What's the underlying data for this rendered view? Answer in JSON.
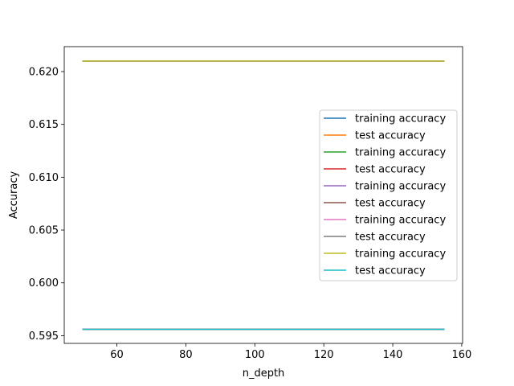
{
  "chart_data": {
    "type": "line",
    "title": "",
    "xlabel": "n_depth",
    "ylabel": "Accuracy",
    "xlim": [
      44.75,
      160.25
    ],
    "ylim": [
      0.59427,
      0.62236
    ],
    "xticks": [
      60,
      80,
      100,
      120,
      140,
      160
    ],
    "yticks": [
      0.595,
      0.6,
      0.605,
      0.61,
      0.615,
      0.62
    ],
    "ytick_labels": [
      "0.595",
      "0.600",
      "0.605",
      "0.610",
      "0.615",
      "0.620"
    ],
    "legend_position": "center-right",
    "grid": false,
    "series": [
      {
        "name": "training accuracy",
        "color": "#1f77b4",
        "x": [
          50,
          155
        ],
        "y": [
          0.621,
          0.621
        ]
      },
      {
        "name": "test accuracy",
        "color": "#ff7f0e",
        "x": [
          50,
          155
        ],
        "y": [
          0.5956,
          0.5956
        ]
      },
      {
        "name": "training accuracy",
        "color": "#2ca02c",
        "x": [
          50,
          155
        ],
        "y": [
          0.621,
          0.621
        ]
      },
      {
        "name": "test accuracy",
        "color": "#d62728",
        "x": [
          50,
          155
        ],
        "y": [
          0.5956,
          0.5956
        ]
      },
      {
        "name": "training accuracy",
        "color": "#9467bd",
        "x": [
          50,
          155
        ],
        "y": [
          0.621,
          0.621
        ]
      },
      {
        "name": "test accuracy",
        "color": "#8c564b",
        "x": [
          50,
          155
        ],
        "y": [
          0.5956,
          0.5956
        ]
      },
      {
        "name": "training accuracy",
        "color": "#e377c2",
        "x": [
          50,
          155
        ],
        "y": [
          0.621,
          0.621
        ]
      },
      {
        "name": "test accuracy",
        "color": "#7f7f7f",
        "x": [
          50,
          155
        ],
        "y": [
          0.5956,
          0.5956
        ]
      },
      {
        "name": "training accuracy",
        "color": "#bcbd22",
        "x": [
          50,
          155
        ],
        "y": [
          0.621,
          0.621
        ]
      },
      {
        "name": "test accuracy",
        "color": "#17becf",
        "x": [
          50,
          155
        ],
        "y": [
          0.5956,
          0.5956
        ]
      }
    ]
  }
}
